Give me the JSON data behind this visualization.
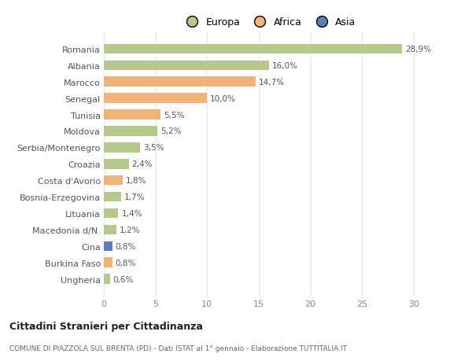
{
  "countries": [
    "Romania",
    "Albania",
    "Marocco",
    "Senegal",
    "Tunisia",
    "Moldova",
    "Serbia/Montenegro",
    "Croazia",
    "Costa d'Avorio",
    "Bosnia-Erzegovina",
    "Lituania",
    "Macedonia d/N.",
    "Cina",
    "Burkina Faso",
    "Ungheria"
  ],
  "values": [
    28.9,
    16.0,
    14.7,
    10.0,
    5.5,
    5.2,
    3.5,
    2.4,
    1.8,
    1.7,
    1.4,
    1.2,
    0.8,
    0.8,
    0.6
  ],
  "labels": [
    "28,9%",
    "16,0%",
    "14,7%",
    "10,0%",
    "5,5%",
    "5,2%",
    "3,5%",
    "2,4%",
    "1,8%",
    "1,7%",
    "1,4%",
    "1,2%",
    "0,8%",
    "0,8%",
    "0,6%"
  ],
  "continents": [
    "Europa",
    "Europa",
    "Africa",
    "Africa",
    "Africa",
    "Europa",
    "Europa",
    "Europa",
    "Africa",
    "Europa",
    "Europa",
    "Europa",
    "Asia",
    "Africa",
    "Europa"
  ],
  "colors": {
    "Europa": "#b5c98e",
    "Africa": "#f0b47a",
    "Asia": "#5b7fbd"
  },
  "xlim": [
    0,
    32
  ],
  "xticks": [
    0,
    5,
    10,
    15,
    20,
    25,
    30
  ],
  "title": "Cittadini Stranieri per Cittadinanza",
  "subtitle": "COMUNE DI PIAZZOLA SUL BRENTA (PD) - Dati ISTAT al 1° gennaio - Elaborazione TUTTITALIA.IT",
  "background_color": "#ffffff",
  "grid_color": "#e8e8e8"
}
